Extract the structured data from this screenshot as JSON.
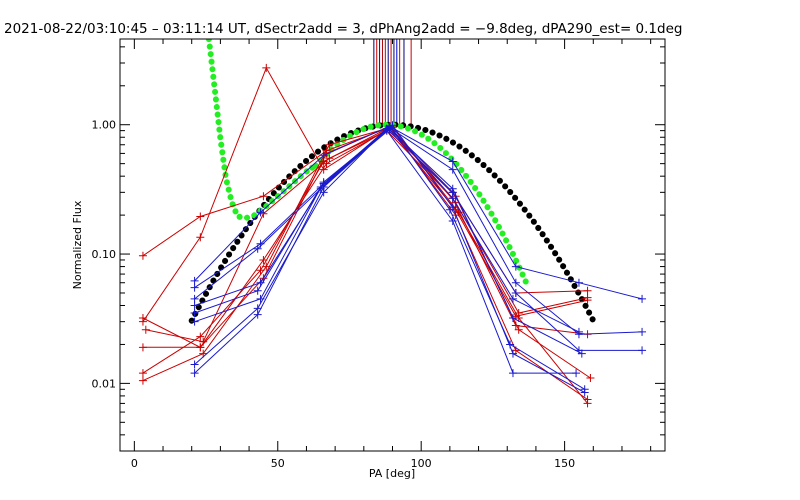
{
  "chart_data": {
    "type": "line",
    "title": "2021-08-22/03:10:45 – 03:11:14 UT, dSectr2add = 3, dPhAng2add = −9.8deg, dPA290_est=  0.1deg",
    "xlabel": "PA [deg]",
    "ylabel": "Normalized Flux",
    "x_scale": "linear",
    "y_scale": "log",
    "xlim": [
      -5,
      185
    ],
    "ylim": [
      0.003,
      4.6
    ],
    "x_ticks": [
      0,
      50,
      100,
      150
    ],
    "x_tick_labels": [
      "0",
      "50",
      "100",
      "150"
    ],
    "y_ticks": [
      0.01,
      0.1,
      1.0
    ],
    "y_tick_labels": [
      "0.01",
      "0.10",
      "1.00"
    ],
    "vertical_marker_lines": {
      "colors": [
        "#000080",
        "#cc0000",
        "#0000cc",
        "#aa0000",
        "#cc0000",
        "#000080",
        "#cc0000",
        "#000080",
        "#0000cc",
        "#cc0000",
        "#000080",
        "#cc0000"
      ],
      "x": [
        83.5,
        84.5,
        85.5,
        86.5,
        87.5,
        88.5,
        89.5,
        90.5,
        91.5,
        92.5,
        94,
        96.5
      ]
    },
    "series": [
      {
        "color": "#cc0000",
        "x": [
          3,
          23,
          45,
          67,
          89,
          111,
          133,
          158
        ],
        "y": [
          0.097,
          0.195,
          0.28,
          0.63,
          0.95,
          0.3,
          0.05,
          0.052
        ]
      },
      {
        "color": "#cc0000",
        "x": [
          3,
          23,
          46,
          66,
          89,
          112,
          134,
          158
        ],
        "y": [
          0.03,
          0.135,
          2.75,
          0.45,
          0.95,
          0.25,
          0.035,
          0.046
        ]
      },
      {
        "color": "#cc0000",
        "x": [
          4,
          24,
          45,
          68,
          89,
          112,
          133,
          158
        ],
        "y": [
          0.026,
          0.021,
          0.205,
          0.55,
          0.92,
          0.22,
          0.033,
          0.044
        ]
      },
      {
        "color": "#cc0000",
        "x": [
          3,
          23,
          45,
          67,
          88,
          111,
          133,
          158
        ],
        "y": [
          0.032,
          0.019,
          0.09,
          0.5,
          0.9,
          0.27,
          0.028,
          0.024
        ]
      },
      {
        "color": "#cc0000",
        "x": [
          3,
          23,
          44,
          66,
          88,
          112,
          134,
          159
        ],
        "y": [
          0.012,
          0.023,
          0.075,
          0.52,
          0.93,
          0.28,
          0.026,
          0.011
        ]
      },
      {
        "color": "#cc0000",
        "x": [
          3,
          23,
          45,
          67,
          89,
          112,
          133,
          158
        ],
        "y": [
          0.019,
          0.019,
          0.065,
          0.6,
          0.97,
          0.2,
          0.018,
          0.0075
        ]
      },
      {
        "color": "#cc0000",
        "x": [
          3,
          24,
          46,
          68,
          90,
          113,
          134,
          158
        ],
        "y": [
          0.0105,
          0.017,
          0.08,
          0.7,
          0.96,
          0.21,
          0.032,
          0.007
        ]
      },
      {
        "color": "#1a1acc",
        "x": [
          21,
          44,
          66,
          89,
          111,
          133,
          155,
          177
        ],
        "y": [
          0.062,
          0.21,
          0.58,
          0.97,
          0.52,
          0.08,
          0.06,
          0.045
        ]
      },
      {
        "color": "#1a1acc",
        "x": [
          21,
          44,
          66,
          89,
          111,
          133,
          155,
          177
        ],
        "y": [
          0.055,
          0.12,
          0.35,
          0.95,
          0.45,
          0.06,
          0.024,
          0.025
        ]
      },
      {
        "color": "#1a1acc",
        "x": [
          21,
          43,
          65,
          88,
          111,
          133,
          155,
          177
        ],
        "y": [
          0.045,
          0.11,
          0.32,
          0.93,
          0.3,
          0.05,
          0.018,
          0.018
        ]
      },
      {
        "color": "#1a1acc",
        "x": [
          21,
          44,
          66,
          89,
          111,
          132,
          155
        ],
        "y": [
          0.04,
          0.06,
          0.35,
          0.97,
          0.27,
          0.045,
          0.025
        ]
      },
      {
        "color": "#1a1acc",
        "x": [
          21,
          43,
          65,
          89,
          111,
          132,
          156
        ],
        "y": [
          0.035,
          0.052,
          0.33,
          0.92,
          0.32,
          0.032,
          0.017
        ]
      },
      {
        "color": "#1a1acc",
        "x": [
          21,
          44,
          66,
          88,
          111,
          132,
          154
        ],
        "y": [
          0.03,
          0.045,
          0.36,
          0.9,
          0.18,
          0.012,
          0.012
        ]
      },
      {
        "color": "#1a1acc",
        "x": [
          21,
          43,
          66,
          89,
          110,
          131,
          157
        ],
        "y": [
          0.014,
          0.038,
          0.3,
          0.98,
          0.22,
          0.02,
          0.009
        ]
      },
      {
        "color": "#1a1acc",
        "x": [
          21,
          43,
          66,
          90,
          111,
          132,
          157
        ],
        "y": [
          0.012,
          0.034,
          0.33,
          0.99,
          0.23,
          0.017,
          0.0085
        ]
      }
    ],
    "fit_curves": [
      {
        "color": "#000000",
        "center": 90,
        "sigma": 26.5,
        "peak": 1.0,
        "x_range": [
          20,
          160
        ]
      },
      {
        "color": "#22ee22",
        "center": 88,
        "sigma": 20.5,
        "peak": 1.0,
        "x_range": [
          62,
          137
        ],
        "left_x": [
          26,
          28,
          30,
          32,
          34,
          36,
          39,
          42,
          46,
          52,
          58,
          62
        ],
        "left_y": [
          4.6,
          1.9,
          0.78,
          0.38,
          0.25,
          0.195,
          0.19,
          0.2,
          0.235,
          0.305,
          0.4,
          0.47
        ]
      }
    ]
  }
}
